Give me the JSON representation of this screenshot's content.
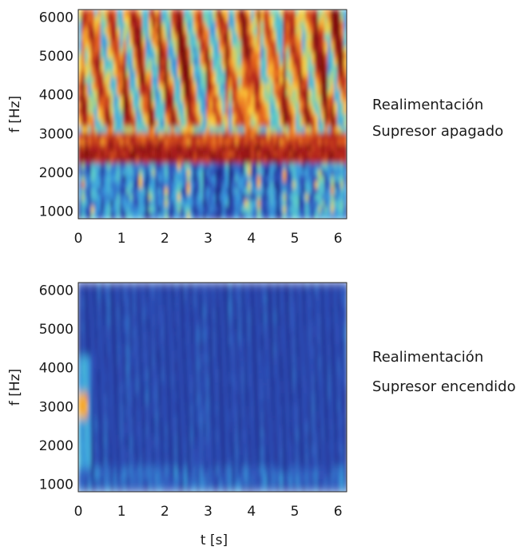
{
  "chart_data": [
    {
      "type": "heatmap",
      "title": "",
      "xlabel": "",
      "ylabel": "f [Hz]",
      "xlim": [
        0,
        6.2
      ],
      "ylim": [
        800,
        6200
      ],
      "x_ticks": [
        "0",
        "1",
        "2",
        "3",
        "4",
        "5",
        "6"
      ],
      "y_ticks": [
        "1000",
        "2000",
        "3000",
        "4000",
        "5000",
        "6000"
      ],
      "annotation": [
        "Realimentación",
        "Supresor apagado"
      ],
      "colormap": [
        "#1a237e",
        "#2f4fb8",
        "#3aa0e0",
        "#5fd0c8",
        "#ffd23c",
        "#e86a1f",
        "#b01f1f",
        "#7a0d0d"
      ],
      "features": {
        "feedback_band_hz": [
          2300,
          2700
        ],
        "dominant_color": "#b01f1f"
      }
    },
    {
      "type": "heatmap",
      "title": "",
      "xlabel": "t [s]",
      "ylabel": "f [Hz]",
      "xlim": [
        0,
        6.2
      ],
      "ylim": [
        800,
        6200
      ],
      "x_ticks": [
        "0",
        "1",
        "2",
        "3",
        "4",
        "5",
        "6"
      ],
      "y_ticks": [
        "1000",
        "2000",
        "3000",
        "4000",
        "5000",
        "6000"
      ],
      "annotation": [
        "Realimentación",
        "Supresor encendido"
      ],
      "colormap": [
        "#1a237e",
        "#2f4fb8",
        "#3aa0e0",
        "#5fd0c8",
        "#ffd23c",
        "#e86a1f",
        "#b01f1f",
        "#7a0d0d"
      ],
      "features": {
        "feedback_band_hz": [],
        "dominant_color": "#2a3f9a"
      }
    }
  ]
}
